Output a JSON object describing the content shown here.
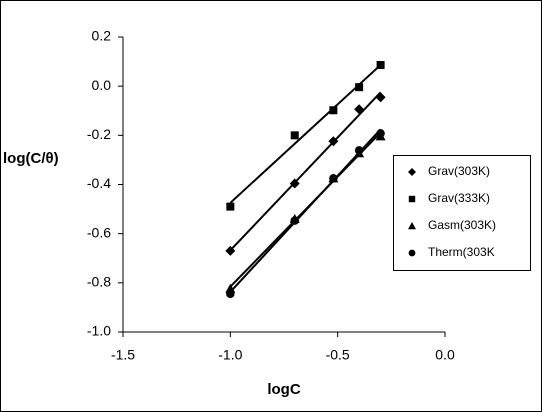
{
  "chart_data": {
    "type": "scatter",
    "x_label": "logC",
    "y_label": "log(C/θ)",
    "x": [
      -1.0,
      -0.7,
      -0.52,
      -0.4,
      -0.3
    ],
    "series": [
      {
        "name": "Grav(303K)",
        "color": "#000000",
        "marker": "diamond",
        "values": [
          -0.67,
          -0.396,
          -0.224,
          -0.094,
          -0.045
        ]
      },
      {
        "name": "Grav(333K)",
        "color": "#000000",
        "marker": "square",
        "values": [
          -0.49,
          -0.2,
          -0.098,
          -0.004,
          0.086
        ]
      },
      {
        "name": "Gasm(303K)",
        "color": "#000000",
        "marker": "triangle",
        "values": [
          -0.824,
          -0.54,
          -0.375,
          -0.273,
          -0.204
        ]
      },
      {
        "name": "Therm(303K",
        "color": "#000000",
        "marker": "circle",
        "values": [
          -0.845,
          -0.547,
          -0.375,
          -0.261,
          -0.192
        ]
      }
    ],
    "trendline": true,
    "xlim": [
      -1.5,
      0.0
    ],
    "xticks": [
      -1.5,
      {
        "value": -1.0,
        "label": "-1.0"
      },
      -0.5,
      {
        "value": 0.0,
        "label": "0.0"
      }
    ],
    "ylim": [
      -1.0,
      0.2
    ],
    "yticks": [
      0.2,
      {
        "value": 0.0,
        "label": "0.0"
      },
      -0.2,
      -0.4,
      -0.6,
      -0.8,
      {
        "value": -1.0,
        "label": "-1.0"
      }
    ],
    "grid": false,
    "legend": "right"
  }
}
